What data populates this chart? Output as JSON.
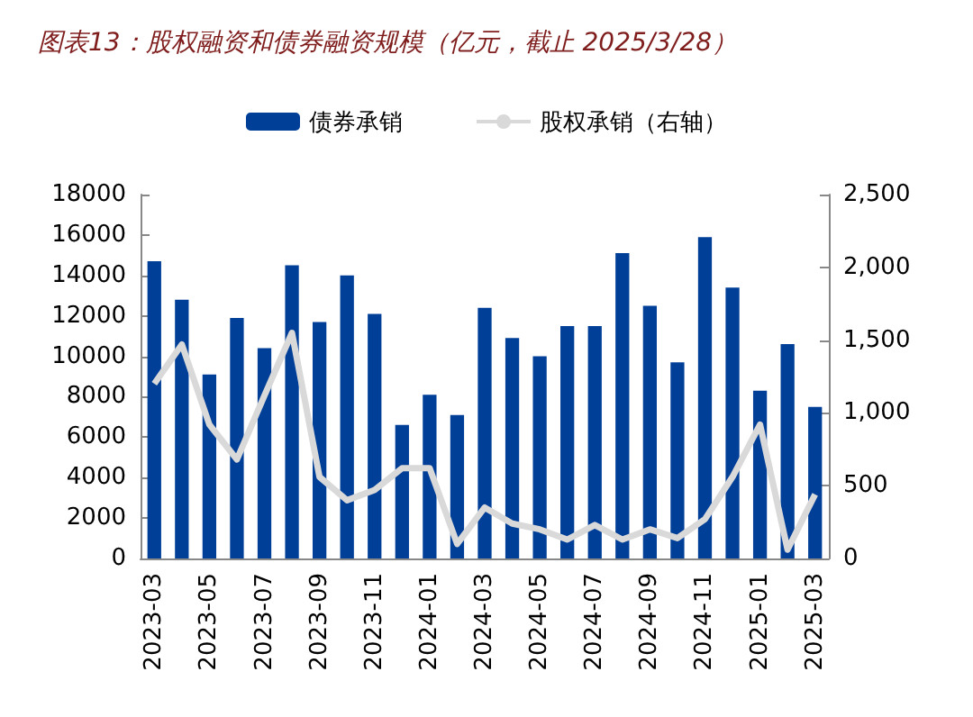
{
  "chart_data": {
    "type": "bar",
    "title": "图表13：股权融资和债券融资规模（亿元，截止 2025/3/28）",
    "categories": [
      "2023-03",
      null,
      "2023-05",
      null,
      "2023-07",
      null,
      "2023-09",
      null,
      "2023-11",
      null,
      "2024-01",
      null,
      "2024-03",
      null,
      "2024-05",
      null,
      "2024-07",
      null,
      "2024-09",
      null,
      "2024-11",
      null,
      "2025-01",
      null,
      "2025-03"
    ],
    "series": [
      {
        "name": "债券承销",
        "color": "#003f98",
        "values": [
          14700,
          12800,
          9100,
          11900,
          10400,
          14500,
          11700,
          14000,
          12100,
          6600,
          8100,
          7100,
          12400,
          10900,
          10000,
          11500,
          11500,
          15100,
          12500,
          9700,
          15900,
          13400,
          8300,
          10600,
          7500
        ]
      },
      {
        "name": "股权承销（右轴）",
        "type": "line",
        "axis": "y2",
        "color": "#d9d9d9",
        "values": [
          1200,
          1470,
          920,
          680,
          1120,
          1550,
          560,
          400,
          470,
          620,
          620,
          100,
          350,
          240,
          200,
          130,
          230,
          130,
          200,
          140,
          270,
          560,
          920,
          60,
          440
        ]
      }
    ],
    "ylim": [
      0,
      18000
    ],
    "yticks": [
      0,
      2000,
      4000,
      6000,
      8000,
      10000,
      12000,
      14000,
      16000,
      18000
    ],
    "y2lim": [
      0,
      2500
    ],
    "y2ticks": [
      0,
      500,
      {
        "value": 1000,
        "label": "1,000"
      },
      {
        "value": 1500,
        "label": "1,500"
      },
      {
        "value": 2000,
        "label": "2,000"
      },
      {
        "value": 2500,
        "label": "2,500"
      }
    ],
    "legend": "top",
    "grid": false,
    "marker": "none",
    "line_style": "solid"
  }
}
